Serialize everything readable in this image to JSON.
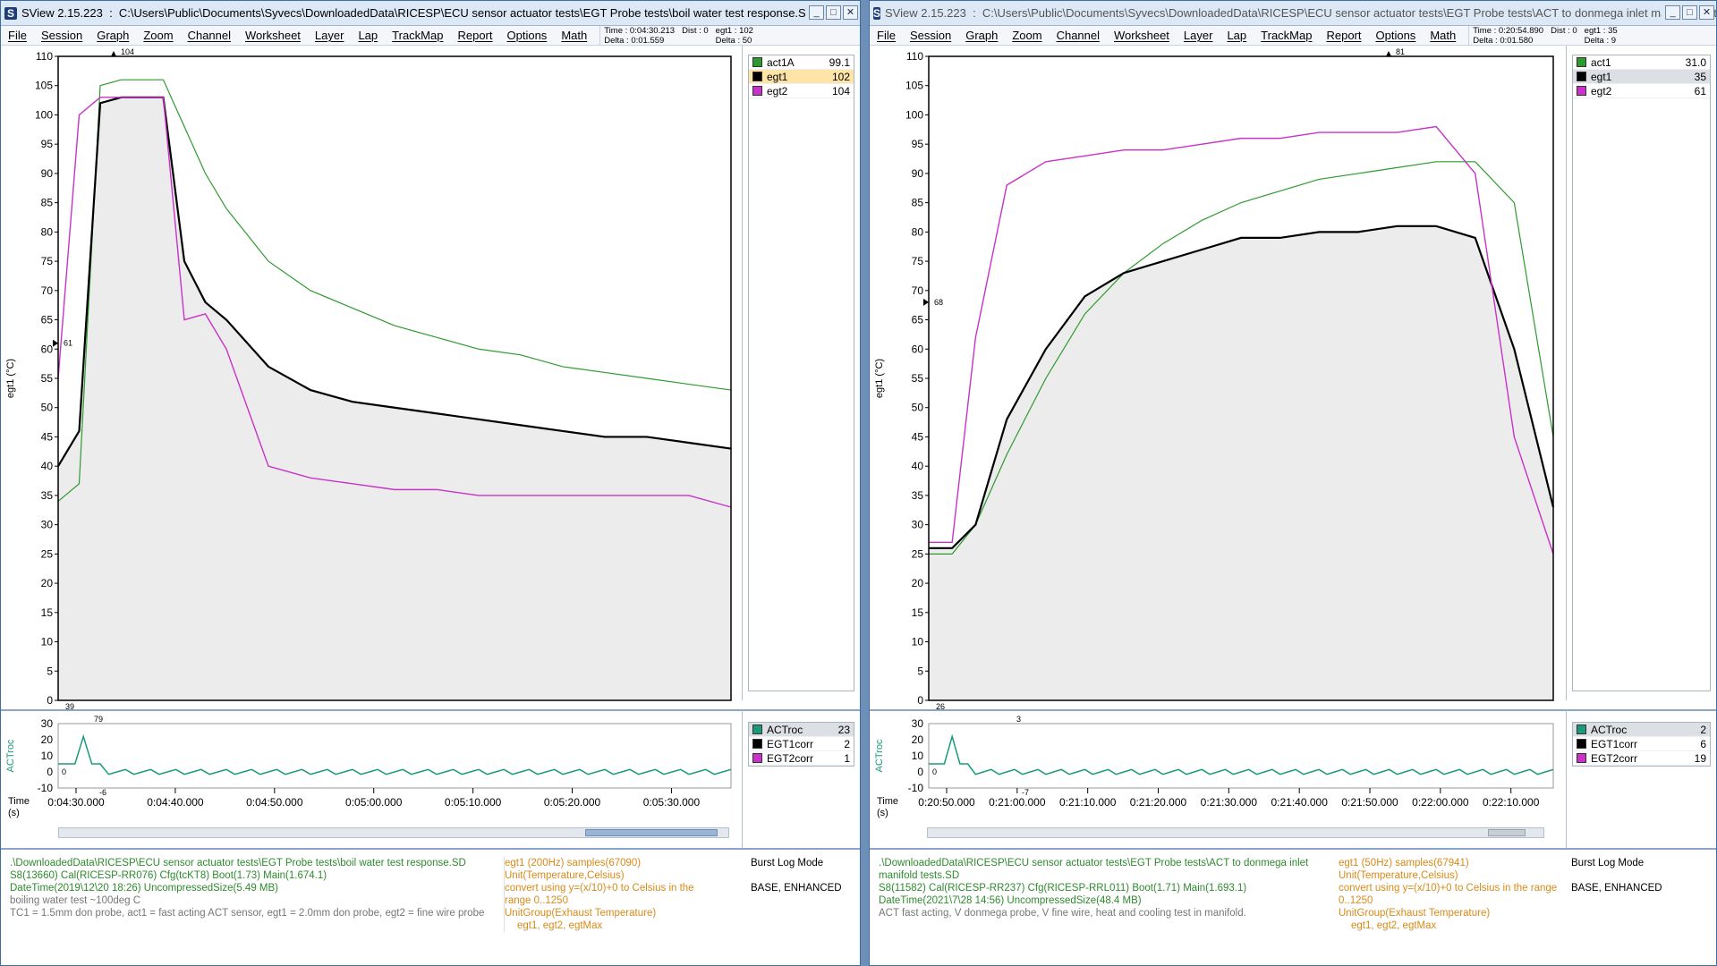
{
  "left": {
    "app_name": "SView 2.15.223",
    "title_path": "C:\\Users\\Public\\Documents\\Syvecs\\DownloadedData\\RICESP\\ECU sensor actuator tests\\EGT Probe tests\\boil water test response.SD",
    "readout": {
      "time": "Time : 0:04:30.213",
      "delta": "Delta : 0:01.559",
      "dist": "Dist : 0",
      "ch": "egt1 : 102",
      "chdelta": "Delta : 50"
    },
    "y_axis_label": "egt1 (°C)",
    "y_ticks": [
      "110",
      "105",
      "100",
      "95",
      "90",
      "85",
      "80",
      "75",
      "70",
      "65",
      "60",
      "55",
      "50",
      "45",
      "40",
      "35",
      "30",
      "25",
      "20",
      "15",
      "10",
      "5",
      "0"
    ],
    "markers": {
      "top": "104",
      "left": "61",
      "bottom": "39",
      "sub_top": "79",
      "sub_left": "0",
      "sub_bottom": "-6"
    },
    "legend": [
      {
        "name": "act1A",
        "value": "99.1",
        "color": "#2e9a2e"
      },
      {
        "name": "egt1",
        "value": "102",
        "color": "#000000"
      },
      {
        "name": "egt2",
        "value": "104",
        "color": "#c832c8"
      }
    ],
    "sub_y_label": "ACTroc",
    "sub_y_ticks": [
      "30",
      "20",
      "10",
      "0",
      "-10"
    ],
    "sub_legend": [
      {
        "name": "ACTroc",
        "value": "23",
        "color": "#1a9a7a"
      },
      {
        "name": "EGT1corr",
        "value": "2",
        "color": "#000000"
      },
      {
        "name": "EGT2corr",
        "value": "1",
        "color": "#c832c8"
      }
    ],
    "time_label": "Time\n(s)",
    "time_ticks": [
      "0:04:30.000",
      "0:04:40.000",
      "0:04:50.000",
      "0:05:00.000",
      "0:05:10.000",
      "0:05:20.000",
      "0:05:30.000"
    ],
    "info": {
      "file": ".\\DownloadedData\\RICESP\\ECU sensor actuator tests\\EGT Probe tests\\boil water test response.SD",
      "s8": "S8(13660) Cal(RICESP-RR076) Cfg(tcKT8) Boot(1.73) Main(1.674.1)",
      "date": "DateTime(2019\\12\\20 18:26) UncompressedSize(5.49 MB)",
      "note1": "boiling water test ~100deg C",
      "note2": "TC1 = 1.5mm don probe, act1 = fast acting ACT sensor, egt1 = 2.0mm don probe, egt2 = fine wire probe",
      "ch_head": "egt1 (200Hz) samples(67090)",
      "ch_unit": "Unit(Temperature,Celsius)",
      "ch_conv": "convert using y=(x/10)+0 to Celsius in the range 0..1250",
      "ch_group": "UnitGroup(Exhaust Temperature)",
      "ch_members": "egt1, egt2, egtMax",
      "mode_label": "Burst Log Mode",
      "mode_value": "BASE, ENHANCED"
    }
  },
  "right": {
    "app_name": "SView 2.15.223",
    "title_path": "C:\\Users\\Public\\Documents\\Syvecs\\DownloadedData\\RICESP\\ECU sensor actuator tests\\EGT Probe tests\\ACT to donmega inlet manifold tests.SD",
    "readout": {
      "time": "Time : 0:20:54.890",
      "delta": "Delta : 0:01.580",
      "dist": "Dist : 0",
      "ch": "egt1 : 35",
      "chdelta": "Delta : 9"
    },
    "y_axis_label": "egt1 (°C)",
    "y_ticks": [
      "110",
      "105",
      "100",
      "95",
      "90",
      "85",
      "80",
      "75",
      "70",
      "65",
      "60",
      "55",
      "50",
      "45",
      "40",
      "35",
      "30",
      "25",
      "20",
      "15",
      "10",
      "5",
      "0"
    ],
    "markers": {
      "top": "81",
      "left": "68",
      "bottom": "26",
      "sub_top": "3",
      "sub_left": "0",
      "sub_bottom": "-7"
    },
    "legend": [
      {
        "name": "act1",
        "value": "31.0",
        "color": "#2e9a2e"
      },
      {
        "name": "egt1",
        "value": "35",
        "color": "#000000"
      },
      {
        "name": "egt2",
        "value": "61",
        "color": "#c832c8"
      }
    ],
    "sub_y_label": "ACTroc",
    "sub_y_ticks": [
      "30",
      "20",
      "10",
      "0",
      "-10"
    ],
    "sub_legend": [
      {
        "name": "ACTroc",
        "value": "2",
        "color": "#1a9a7a"
      },
      {
        "name": "EGT1corr",
        "value": "6",
        "color": "#000000"
      },
      {
        "name": "EGT2corr",
        "value": "19",
        "color": "#c832c8"
      }
    ],
    "time_label": "Time\n(s)",
    "time_ticks": [
      "0:20:50.000",
      "0:21:00.000",
      "0:21:10.000",
      "0:21:20.000",
      "0:21:30.000",
      "0:21:40.000",
      "0:21:50.000",
      "0:22:00.000",
      "0:22:10.000"
    ],
    "info": {
      "file": ".\\DownloadedData\\RICESP\\ECU sensor actuator tests\\EGT Probe tests\\ACT to donmega inlet manifold tests.SD",
      "s8": "S8(11582) Cal(RICESP-RR237) Cfg(RICESP-RRL011) Boot(1.71) Main(1.693.1)",
      "date": "DateTime(2021\\7\\28 14:56) UncompressedSize(48.4 MB)",
      "note1": "ACT fast acting, V donmega probe, V fine wire, heat and cooling test in manifold.",
      "note2": "",
      "ch_head": "egt1 (50Hz) samples(67941)",
      "ch_unit": "Unit(Temperature,Celsius)",
      "ch_conv": "convert using y=(x/10)+0 to Celsius in the range 0..1250",
      "ch_group": "UnitGroup(Exhaust Temperature)",
      "ch_members": "egt1, egt2, egtMax",
      "mode_label": "Burst Log Mode",
      "mode_value": "BASE, ENHANCED"
    }
  },
  "menu": [
    "File",
    "Session",
    "Graph",
    "Zoom",
    "Channel",
    "Worksheet",
    "Layer",
    "Lap",
    "TrackMap",
    "Report",
    "Options",
    "Math"
  ],
  "window_buttons": [
    "_",
    "□",
    "✕"
  ],
  "chart_data": [
    {
      "type": "line",
      "title": "",
      "xlabel": "Time (s)",
      "ylabel": "egt1 (°C)",
      "ylim": [
        0,
        110
      ],
      "x": [
        0,
        2,
        4,
        6,
        8,
        10,
        12,
        14,
        16,
        20,
        24,
        28,
        32,
        36,
        40,
        44,
        48,
        52,
        56,
        60,
        64
      ],
      "series": [
        {
          "name": "act1A",
          "values": [
            34,
            37,
            105,
            106,
            106,
            106,
            98,
            90,
            84,
            75,
            70,
            67,
            64,
            62,
            60,
            59,
            57,
            56,
            55,
            54,
            53
          ]
        },
        {
          "name": "egt1",
          "values": [
            40,
            46,
            102,
            103,
            103,
            103,
            75,
            68,
            65,
            57,
            53,
            51,
            50,
            49,
            48,
            47,
            46,
            45,
            45,
            44,
            43
          ]
        },
        {
          "name": "egt2",
          "values": [
            55,
            100,
            103,
            103,
            103,
            103,
            65,
            66,
            60,
            40,
            38,
            37,
            36,
            36,
            35,
            35,
            35,
            35,
            35,
            35,
            33
          ]
        }
      ]
    },
    {
      "type": "line",
      "title": "",
      "xlabel": "Time (s)",
      "ylabel": "egt1 (°C)",
      "ylim": [
        0,
        110
      ],
      "x": [
        0,
        3,
        6,
        10,
        15,
        20,
        25,
        30,
        35,
        40,
        45,
        50,
        55,
        60,
        65,
        70,
        75,
        80
      ],
      "series": [
        {
          "name": "act1",
          "values": [
            25,
            25,
            30,
            42,
            55,
            66,
            73,
            78,
            82,
            85,
            87,
            89,
            90,
            91,
            92,
            92,
            85,
            45
          ]
        },
        {
          "name": "egt1",
          "values": [
            26,
            26,
            30,
            48,
            60,
            69,
            73,
            75,
            77,
            79,
            79,
            80,
            80,
            81,
            81,
            79,
            60,
            33
          ]
        },
        {
          "name": "egt2",
          "values": [
            27,
            27,
            62,
            88,
            92,
            93,
            94,
            94,
            95,
            96,
            96,
            97,
            97,
            97,
            98,
            90,
            45,
            25
          ]
        }
      ]
    }
  ]
}
